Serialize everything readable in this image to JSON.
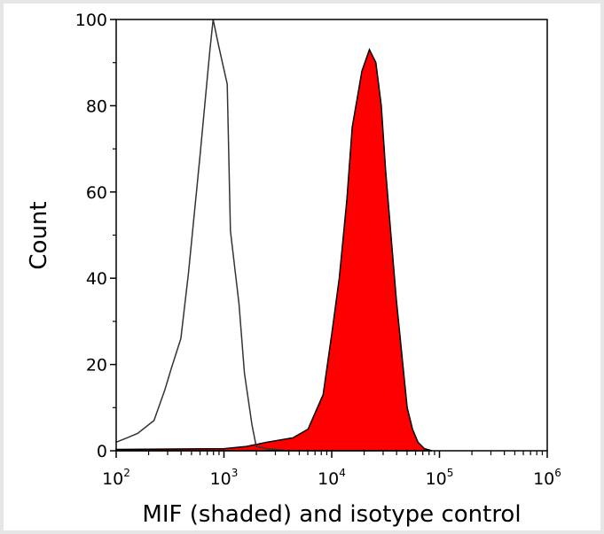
{
  "chart_data": {
    "type": "area",
    "title": "",
    "xlabel": "MIF (shaded) and isotype control",
    "ylabel": "Count",
    "xscale": "log",
    "xlim": [
      100,
      1000000
    ],
    "ylim": [
      0,
      100
    ],
    "grid": false,
    "legend": "none",
    "x_ticks": [
      {
        "value": 100,
        "base": "10",
        "exp": "2"
      },
      {
        "value": 1000,
        "base": "10",
        "exp": "3"
      },
      {
        "value": 10000,
        "base": "10",
        "exp": "4"
      },
      {
        "value": 100000,
        "base": "10",
        "exp": "5"
      },
      {
        "value": 1000000,
        "base": "10",
        "exp": "6"
      }
    ],
    "y_ticks": [
      {
        "value": 0,
        "label": "0"
      },
      {
        "value": 20,
        "label": "20"
      },
      {
        "value": 40,
        "label": "40"
      },
      {
        "value": 60,
        "label": "60"
      },
      {
        "value": 80,
        "label": "80"
      },
      {
        "value": 100,
        "label": "100"
      }
    ],
    "series": [
      {
        "id": "isotype",
        "filled": false,
        "color": "#333333",
        "x": [
          100,
          126,
          158,
          224,
          282,
          324,
          398,
          468,
          603,
          741,
          794,
          891,
          1072,
          1148,
          1380,
          1549,
          1820,
          1995,
          2512,
          3981
        ],
        "y": [
          2,
          3,
          4,
          7,
          14,
          19,
          26,
          41,
          69,
          93,
          100,
          94,
          85,
          51,
          34,
          18,
          6,
          1,
          0.5,
          0
        ]
      },
      {
        "id": "mif",
        "filled": true,
        "color": "#ff0000",
        "stroke": "#000000",
        "x": [
          100,
          1000,
          1622,
          2512,
          4365,
          6026,
          8318,
          10000,
          11749,
          13804,
          15488,
          19055,
          22387,
          25704,
          28840,
          31623,
          35481,
          39811,
          45709,
          50119,
          56234,
          63096,
          72444,
          85114
        ],
        "y": [
          0.3,
          0.5,
          1,
          2,
          3,
          5,
          13,
          27,
          40,
          58,
          75,
          88,
          93,
          90,
          80,
          65,
          50,
          35,
          20,
          10,
          5,
          2,
          0.5,
          0
        ]
      }
    ]
  }
}
